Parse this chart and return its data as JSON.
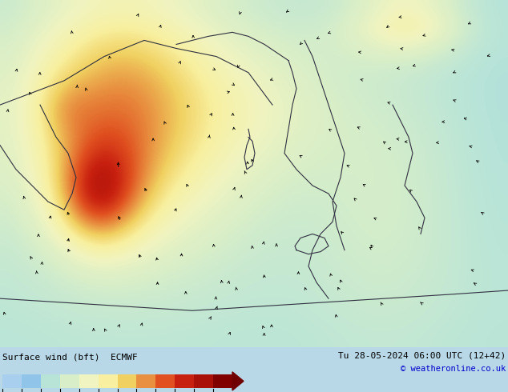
{
  "title_left": "Surface wind (bft)  ECMWF",
  "title_right_line1": "Tu 28-05-2024 06:00 UTC (12+42)",
  "title_right_line2": "© weatheronline.co.uk",
  "fig_width": 6.34,
  "fig_height": 4.9,
  "dpi": 100,
  "map_bg": "#7ec8e8",
  "legend_bg": "#d8d8d8",
  "bft_colors": [
    "#a8d0ee",
    "#90c4e8",
    "#b8e4d8",
    "#d8eec8",
    "#f0f4c0",
    "#f8f0a0",
    "#f0d060",
    "#e89040",
    "#e05020",
    "#c82010",
    "#a81008",
    "#800000"
  ],
  "colorbar_ticks": [
    1,
    2,
    3,
    4,
    5,
    6,
    7,
    8,
    9,
    10,
    11,
    12
  ],
  "right_text_color": "#000088",
  "copyright_color": "#0000cc"
}
